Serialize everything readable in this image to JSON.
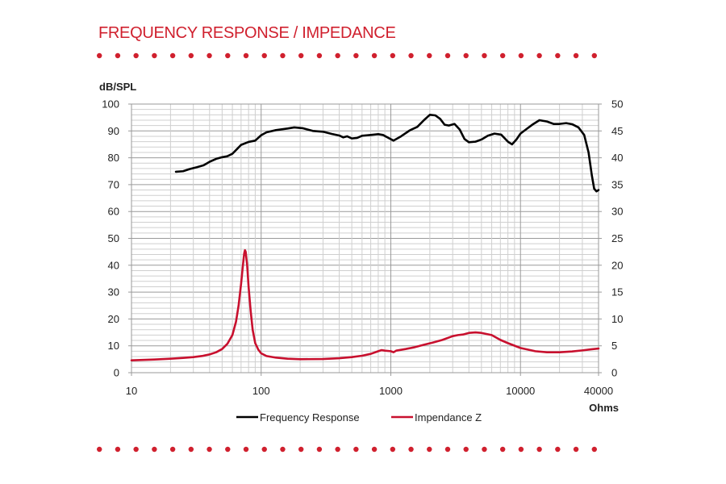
{
  "header": {
    "title": "FREQUENCY RESPONSE / IMPEDANCE",
    "accent_color": "#d0202e",
    "dot_count": 28
  },
  "chart_data": {
    "type": "line",
    "x_scale": "log",
    "xlim": [
      10,
      40000
    ],
    "x_ticks": [
      "10",
      "100",
      "1000",
      "10000",
      "40000"
    ],
    "x_unit_label": "Ohms",
    "ylabel": "dB/SPL",
    "ylim": [
      0,
      100
    ],
    "y_ticks": [
      "0",
      "10",
      "20",
      "30",
      "40",
      "50",
      "60",
      "70",
      "80",
      "90",
      "100"
    ],
    "y2lim": [
      0,
      50
    ],
    "y2_ticks": [
      "0",
      "5",
      "10",
      "15",
      "20",
      "25",
      "30",
      "35",
      "40",
      "45",
      "50"
    ],
    "grid": true,
    "legend_position": "bottom",
    "series": [
      {
        "name": "Frequency Response",
        "axis": "left",
        "color": "#000000",
        "points": [
          [
            22,
            74.8
          ],
          [
            25,
            75.0
          ],
          [
            28,
            75.8
          ],
          [
            32,
            76.5
          ],
          [
            36,
            77.2
          ],
          [
            40,
            78.5
          ],
          [
            45,
            79.6
          ],
          [
            50,
            80.2
          ],
          [
            55,
            80.6
          ],
          [
            60,
            81.5
          ],
          [
            65,
            83.2
          ],
          [
            70,
            84.8
          ],
          [
            80,
            85.9
          ],
          [
            90,
            86.4
          ],
          [
            100,
            88.4
          ],
          [
            110,
            89.5
          ],
          [
            130,
            90.3
          ],
          [
            160,
            90.9
          ],
          [
            180,
            91.3
          ],
          [
            210,
            91.0
          ],
          [
            250,
            90.0
          ],
          [
            300,
            89.7
          ],
          [
            350,
            88.9
          ],
          [
            400,
            88.3
          ],
          [
            430,
            87.6
          ],
          [
            460,
            88.0
          ],
          [
            500,
            87.2
          ],
          [
            550,
            87.4
          ],
          [
            600,
            88.2
          ],
          [
            700,
            88.5
          ],
          [
            800,
            88.8
          ],
          [
            870,
            88.5
          ],
          [
            950,
            87.5
          ],
          [
            1050,
            86.4
          ],
          [
            1200,
            88.0
          ],
          [
            1400,
            90.2
          ],
          [
            1600,
            91.5
          ],
          [
            1800,
            94.0
          ],
          [
            2000,
            96.0
          ],
          [
            2200,
            95.8
          ],
          [
            2400,
            94.5
          ],
          [
            2600,
            92.3
          ],
          [
            2800,
            92.0
          ],
          [
            3100,
            92.6
          ],
          [
            3400,
            90.5
          ],
          [
            3700,
            87.0
          ],
          [
            4000,
            85.8
          ],
          [
            4500,
            86.0
          ],
          [
            5000,
            86.8
          ],
          [
            5600,
            88.2
          ],
          [
            6300,
            89.0
          ],
          [
            7100,
            88.6
          ],
          [
            8000,
            86.0
          ],
          [
            8600,
            85.0
          ],
          [
            9300,
            86.8
          ],
          [
            10000,
            89.0
          ],
          [
            11200,
            90.8
          ],
          [
            12500,
            92.5
          ],
          [
            14000,
            94.0
          ],
          [
            16000,
            93.5
          ],
          [
            18000,
            92.6
          ],
          [
            20000,
            92.6
          ],
          [
            22500,
            92.9
          ],
          [
            25000,
            92.5
          ],
          [
            28000,
            91.3
          ],
          [
            31000,
            88.5
          ],
          [
            33500,
            82.0
          ],
          [
            35500,
            73.5
          ],
          [
            37000,
            68.5
          ],
          [
            38500,
            67.5
          ],
          [
            40000,
            68.0
          ]
        ]
      },
      {
        "name": "Impendance Z",
        "axis": "right",
        "color": "#c8102e",
        "points": [
          [
            10,
            2.3
          ],
          [
            15,
            2.45
          ],
          [
            20,
            2.6
          ],
          [
            25,
            2.75
          ],
          [
            30,
            2.9
          ],
          [
            35,
            3.1
          ],
          [
            40,
            3.4
          ],
          [
            45,
            3.8
          ],
          [
            50,
            4.4
          ],
          [
            55,
            5.4
          ],
          [
            60,
            7.0
          ],
          [
            64,
            9.5
          ],
          [
            67,
            12.5
          ],
          [
            70,
            16.5
          ],
          [
            72,
            19.5
          ],
          [
            74,
            22.2
          ],
          [
            75,
            22.8
          ],
          [
            76,
            22.5
          ],
          [
            78,
            20.0
          ],
          [
            80,
            16.0
          ],
          [
            83,
            11.5
          ],
          [
            86,
            8.0
          ],
          [
            90,
            5.5
          ],
          [
            95,
            4.3
          ],
          [
            100,
            3.6
          ],
          [
            110,
            3.1
          ],
          [
            130,
            2.8
          ],
          [
            160,
            2.6
          ],
          [
            200,
            2.5
          ],
          [
            300,
            2.55
          ],
          [
            400,
            2.7
          ],
          [
            500,
            2.9
          ],
          [
            600,
            3.15
          ],
          [
            700,
            3.5
          ],
          [
            800,
            4.0
          ],
          [
            850,
            4.2
          ],
          [
            900,
            4.1
          ],
          [
            1000,
            4.0
          ],
          [
            1050,
            3.8
          ],
          [
            1100,
            4.1
          ],
          [
            1300,
            4.4
          ],
          [
            1500,
            4.7
          ],
          [
            1800,
            5.2
          ],
          [
            2100,
            5.6
          ],
          [
            2500,
            6.1
          ],
          [
            3000,
            6.8
          ],
          [
            3300,
            7.0
          ],
          [
            3600,
            7.1
          ],
          [
            4000,
            7.4
          ],
          [
            4500,
            7.5
          ],
          [
            5000,
            7.4
          ],
          [
            6000,
            7.0
          ],
          [
            7000,
            6.1
          ],
          [
            8000,
            5.5
          ],
          [
            10000,
            4.6
          ],
          [
            13000,
            4.0
          ],
          [
            16000,
            3.8
          ],
          [
            20000,
            3.8
          ],
          [
            25000,
            3.95
          ],
          [
            30000,
            4.15
          ],
          [
            35000,
            4.35
          ],
          [
            40000,
            4.5
          ]
        ]
      }
    ]
  }
}
